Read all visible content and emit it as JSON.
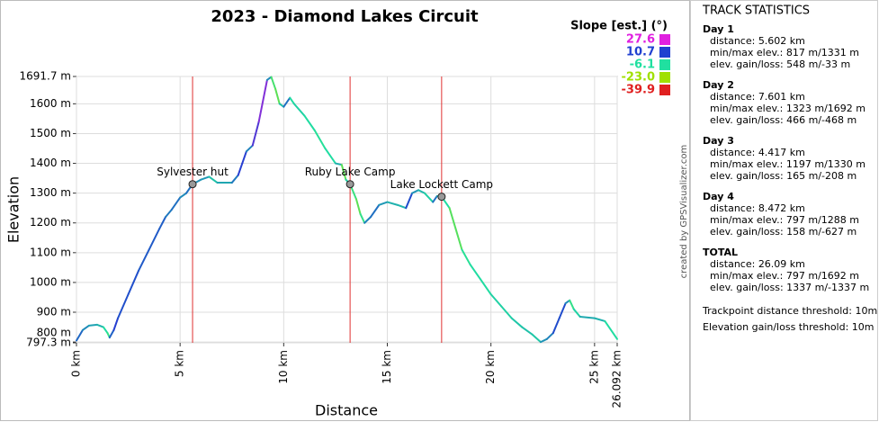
{
  "chart_data": {
    "type": "line",
    "title": "2023 - Diamond Lakes Circuit",
    "x_label": "Distance",
    "y_label": "Elevation",
    "x": [
      0,
      0.3,
      0.6,
      1.0,
      1.3,
      1.5,
      1.6,
      1.8,
      2.0,
      2.5,
      3.0,
      3.5,
      4.0,
      4.3,
      4.6,
      5.0,
      5.3,
      5.602,
      6.0,
      6.4,
      6.8,
      7.5,
      7.8,
      8.0,
      8.2,
      8.5,
      8.8,
      9.2,
      9.4,
      9.6,
      9.8,
      10.0,
      10.3,
      10.5,
      11.0,
      11.5,
      12.0,
      12.5,
      12.8,
      13.0,
      13.203,
      13.5,
      13.7,
      13.9,
      14.2,
      14.6,
      15.0,
      15.5,
      15.9,
      16.2,
      16.5,
      16.8,
      17.2,
      17.4,
      17.62,
      18.0,
      18.3,
      18.6,
      19.0,
      19.5,
      20.0,
      20.5,
      21.0,
      21.5,
      22.0,
      22.4,
      22.7,
      23.0,
      23.3,
      23.6,
      23.8,
      24.0,
      24.3,
      25.0,
      25.5,
      26.092
    ],
    "y": [
      805,
      840,
      855,
      858,
      850,
      830,
      815,
      840,
      880,
      960,
      1040,
      1110,
      1180,
      1220,
      1245,
      1285,
      1300,
      1330,
      1345,
      1355,
      1335,
      1335,
      1360,
      1400,
      1440,
      1460,
      1540,
      1680,
      1690,
      1650,
      1600,
      1590,
      1620,
      1600,
      1560,
      1510,
      1450,
      1400,
      1395,
      1345,
      1330,
      1280,
      1230,
      1200,
      1220,
      1260,
      1270,
      1260,
      1250,
      1300,
      1310,
      1300,
      1270,
      1290,
      1288,
      1250,
      1180,
      1110,
      1060,
      1010,
      960,
      920,
      880,
      850,
      825,
      800,
      810,
      830,
      880,
      930,
      940,
      910,
      885,
      880,
      870,
      810
    ],
    "xlim": [
      0,
      26.092
    ],
    "ylim": [
      797.3,
      1691.7
    ],
    "xticks": [
      {
        "value": 0,
        "label": "0 km"
      },
      {
        "value": 5,
        "label": "5 km"
      },
      {
        "value": 10,
        "label": "10 km"
      },
      {
        "value": 15,
        "label": "15 km"
      },
      {
        "value": 20,
        "label": "20 km"
      },
      {
        "value": 25,
        "label": "25 km"
      },
      {
        "value": 26.092,
        "label": "26.092 km"
      }
    ],
    "yticks": [
      {
        "value": 797.3,
        "label": "797.3 m"
      },
      {
        "value": 800,
        "label": "800 m"
      },
      {
        "value": 900,
        "label": "900 m"
      },
      {
        "value": 1000,
        "label": "1000 m"
      },
      {
        "value": 1100,
        "label": "1100 m"
      },
      {
        "value": 1200,
        "label": "1200 m"
      },
      {
        "value": 1300,
        "label": "1300 m"
      },
      {
        "value": 1400,
        "label": "1400 m"
      },
      {
        "value": 1500,
        "label": "1500 m"
      },
      {
        "value": 1600,
        "label": "1600 m"
      },
      {
        "value": 1691.7,
        "label": "1691.7 m"
      }
    ],
    "grid": true,
    "slope_legend": {
      "title": "Slope [est.] (°)",
      "items": [
        {
          "value": 27.6,
          "label": "27.6",
          "color": "#e020e0"
        },
        {
          "value": 10.7,
          "label": "10.7",
          "color": "#2040d0"
        },
        {
          "value": -6.1,
          "label": "-6.1",
          "color": "#20e0a0"
        },
        {
          "value": -23,
          "label": "-23.0",
          "color": "#a0e000"
        },
        {
          "value": -39.9,
          "label": "-39.9",
          "color": "#e02020"
        }
      ]
    },
    "day_boundaries": [
      5.602,
      13.203,
      17.62
    ],
    "boundary_color": "#e03030",
    "waypoints": [
      {
        "name": "Sylvester hut",
        "x": 5.602,
        "y": 1330
      },
      {
        "name": "Ruby Lake Camp",
        "x": 13.203,
        "y": 1330
      },
      {
        "name": "Lake Lockett Camp",
        "x": 17.62,
        "y": 1288
      }
    ]
  },
  "stats": {
    "title": "TRACK STATISTICS",
    "sections": [
      {
        "heading": "Day 1",
        "lines": [
          "distance: 5.602 km",
          "min/max elev.: 817 m/1331 m",
          "elev. gain/loss: 548 m/-33 m"
        ]
      },
      {
        "heading": "Day 2",
        "lines": [
          "distance: 7.601 km",
          "min/max elev.: 1323 m/1692 m",
          "elev. gain/loss: 466 m/-468 m"
        ]
      },
      {
        "heading": "Day 3",
        "lines": [
          "distance: 4.417 km",
          "min/max elev.: 1197 m/1330 m",
          "elev. gain/loss: 165 m/-208 m"
        ]
      },
      {
        "heading": "Day 4",
        "lines": [
          "distance: 8.472 km",
          "min/max elev.: 797 m/1288 m",
          "elev. gain/loss: 158 m/-627 m"
        ]
      },
      {
        "heading": "TOTAL",
        "lines": [
          "distance: 26.09 km",
          "min/max elev.: 797 m/1692 m",
          "elev. gain/loss: 1337 m/-1337 m"
        ]
      }
    ],
    "notes": [
      "Trackpoint distance threshold: 10m",
      "Elevation gain/loss threshold: 10m"
    ]
  },
  "credit": "created by GPSVisualizer.com"
}
